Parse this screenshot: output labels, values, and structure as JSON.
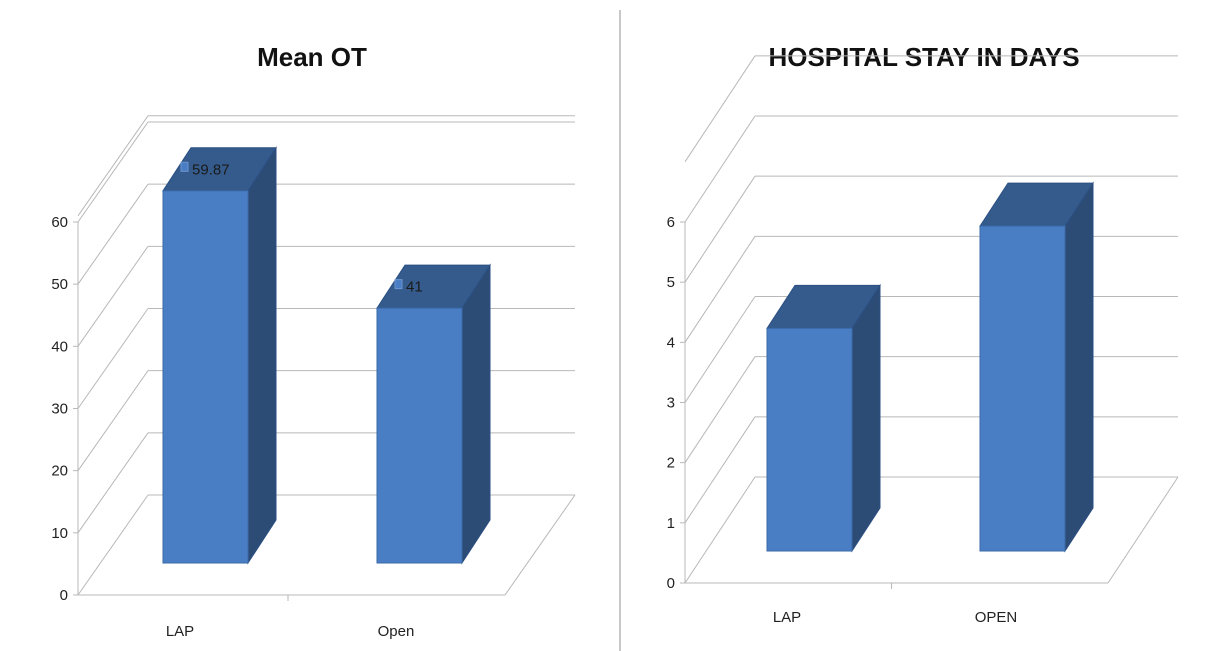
{
  "chart_data": [
    {
      "type": "bar",
      "title": "Mean OT",
      "categories": [
        "LAP",
        "Open"
      ],
      "values": [
        59.87,
        41
      ],
      "data_labels": [
        "59.87",
        "41"
      ],
      "yticks": [
        "0",
        "10",
        "20",
        "30",
        "40",
        "50",
        "60"
      ],
      "ylim": [
        0,
        70
      ],
      "grid": true,
      "style": "3d-column",
      "bar_color": "#4a7ec4"
    },
    {
      "type": "bar",
      "title": "HOSPITAL STAY IN DAYS",
      "categories": [
        "LAP",
        "OPEN"
      ],
      "values": [
        3.7,
        5.4
      ],
      "data_labels": [],
      "yticks": [
        "0",
        "1",
        "2",
        "3",
        "4",
        "5",
        "6"
      ],
      "ylim": [
        0,
        7
      ],
      "grid": true,
      "style": "3d-column",
      "bar_color": "#4a7ec4"
    }
  ]
}
